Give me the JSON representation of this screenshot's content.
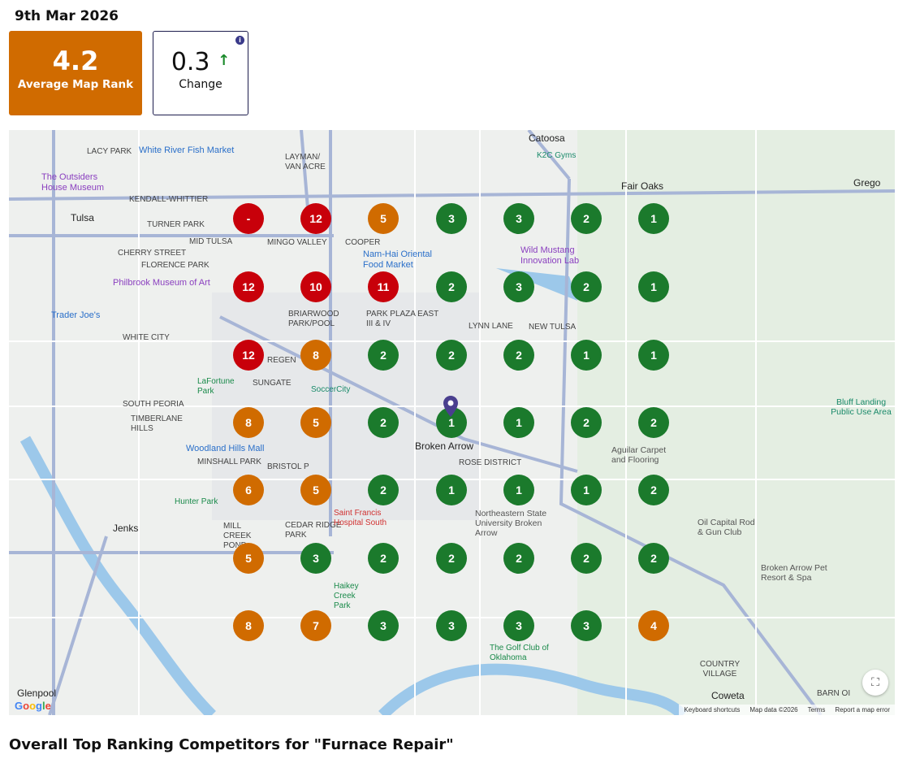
{
  "date": "9th Mar 2026",
  "average": {
    "value": "4.2",
    "label": "Average Map Rank",
    "color": "#d06b00"
  },
  "change": {
    "value": "0.3",
    "label": "Change",
    "direction": "up",
    "arrow": "🡅",
    "info": "i"
  },
  "colors": {
    "red": "#c8000a",
    "orange": "#d06b00",
    "green": "#1b7a2c"
  },
  "grid": [
    [
      "-",
      "12",
      "5",
      "3",
      "3",
      "2",
      "1"
    ],
    [
      "12",
      "10",
      "11",
      "2",
      "3",
      "2",
      "1"
    ],
    [
      "12",
      "8",
      "2",
      "2",
      "2",
      "1",
      "1"
    ],
    [
      "8",
      "5",
      "2",
      "1",
      "1",
      "2",
      "2"
    ],
    [
      "6",
      "5",
      "2",
      "1",
      "1",
      "1",
      "2"
    ],
    [
      "5",
      "3",
      "2",
      "2",
      "2",
      "2",
      "2"
    ],
    [
      "8",
      "7",
      "3",
      "3",
      "3",
      "3",
      "4"
    ]
  ],
  "map_labels": {
    "tulsa": "Tulsa",
    "catoosa": "Catoosa",
    "fair_oaks": "Fair Oaks",
    "gregg": "Grego",
    "broken_arrow": "Broken Arrow",
    "jenks": "Jenks",
    "glenpool": "Glenpool",
    "coweta": "Coweta",
    "lacy_park": "LACY PARK",
    "kendall": "KENDALL-WHITTIER",
    "turner": "TURNER PARK",
    "mid_tulsa": "MID TULSA",
    "cherry": "CHERRY STREET",
    "florence": "FLORENCE PARK",
    "white_city": "WHITE CITY",
    "south_peoria": "SOUTH PEORIA",
    "timberlane": "TIMBERLANE HILLS",
    "minshall": "MINSHALL PARK",
    "mill_creek": "MILL CREEK POND",
    "cedar": "CEDAR RIDGE PARK",
    "layman": "LAYMAN/ VAN ACRE",
    "mingo": "MINGO VALLEY",
    "cooper": "COOPER",
    "briarwood": "BRIARWOOD PARK/POOL",
    "park_plaza": "PARK PLAZA EAST III & IV",
    "lynn": "LYNN LANE",
    "new_tulsa": "NEW TULSA",
    "rose": "ROSE DISTRICT",
    "bristol": "BRISTOL P",
    "country_village": "COUNTRY VILLAGE",
    "barn": "BARN OI",
    "sungate": "SUNGATE",
    "regen": "REGEN",
    "outsiders": "The Outsiders House Museum",
    "philbrook": "Philbrook Museum of Art",
    "white_river": "White River Fish Market",
    "trader": "Trader Joe's",
    "namhai": "Nam-Hai Oriental Food Market",
    "k2c": "K2C Gyms",
    "soccercity": "SoccerCity",
    "lafortune": "LaFortune Park",
    "woodland": "Woodland Hills Mall",
    "hunter": "Hunter Park",
    "saint": "Saint Francis Hospital South",
    "haikey": "Haikey Creek Park",
    "nsu": "Northeastern State University Broken Arrow",
    "golf": "The Golf Club of Oklahoma",
    "aguilar": "Aguilar Carpet and Flooring",
    "oilcap": "Oil Capital Rod & Gun Club",
    "ba_pet": "Broken Arrow Pet Resort & Spa",
    "bluff": "Bluff Landing Public Use Area",
    "mustang": "Wild Mustang Innovation Lab"
  },
  "map_footer": {
    "google": "Google",
    "shortcuts": "Keyboard shortcuts",
    "data": "Map data ©2026",
    "terms": "Terms",
    "report": "Report a map error",
    "fullscreen": "⛶"
  },
  "section_heading": "Overall Top Ranking Competitors for \"Furnace Repair\""
}
